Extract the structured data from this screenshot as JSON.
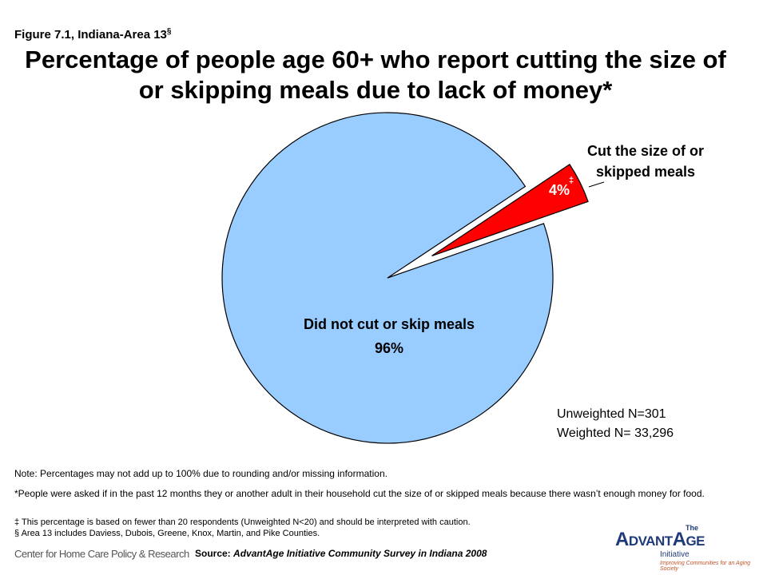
{
  "figure_label": "Figure 7.1, Indiana-Area 13",
  "figure_label_mark": "§",
  "chart_data": {
    "type": "pie",
    "title": "Percentage of people age 60+ who report cutting the size of or skipping meals due to lack of money*",
    "categories": [
      "Cut the size of or skipped meals",
      "Did not cut or skip meals"
    ],
    "values": [
      4,
      96
    ],
    "value_labels": [
      "4%",
      "96%"
    ],
    "colors": [
      "#ff0000",
      "#99ccff"
    ],
    "annotation": "‡",
    "sample": [
      "Unweighted N=301",
      "Weighted N= 33,296"
    ]
  },
  "notes": [
    "Note: Percentages may not add up to 100% due to rounding and/or missing information.",
    "*People were asked if in the past 12 months they or another adult in their household cut the size of or skipped meals because there wasn’t enough money for food.",
    "‡ This percentage is based on fewer than 20 respondents (Unweighted N<20) and should be interpreted with caution.",
    "§ Area 13 includes Daviess, Dubois, Greene, Knox, Martin, and Pike Counties."
  ],
  "source": {
    "label": "Source:",
    "text": "AdvantAge Initiative Community Survey in Indiana 2008"
  },
  "logos": {
    "left": "Center for Home Care Policy & Research",
    "right_small": "The",
    "right": "AdvantAge",
    "right_sub": "Initiative",
    "right_tag": "Improving Communities for an Aging Society"
  }
}
